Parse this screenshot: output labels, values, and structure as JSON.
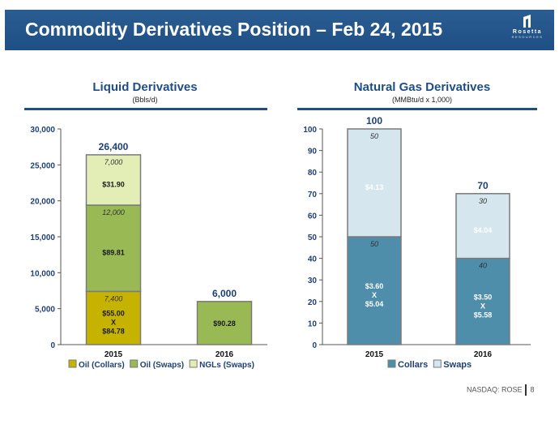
{
  "header": {
    "title": "Commodity Derivatives Position – Feb 24, 2015",
    "logo_name": "Rosetta",
    "logo_sub": "RESOURCES"
  },
  "footer": {
    "ticker": "NASDAQ: ROSE",
    "page": "8"
  },
  "colors": {
    "header_bg": "#235689",
    "oil_collars": "#c6b300",
    "oil_swaps": "#98b954",
    "ngls_swaps": "#e3eeb6",
    "collars": "#4e8eab",
    "swaps": "#d5e6ef"
  },
  "chart_data": [
    {
      "type": "bar",
      "stacked": true,
      "title": "Liquid Derivatives",
      "subtitle": "(Bbls/d)",
      "categories": [
        "2015",
        "2016"
      ],
      "ylim": [
        0,
        30000
      ],
      "yticks": [
        "0",
        "5,000",
        "10,000",
        "15,000",
        "20,000",
        "25,000",
        "30,000"
      ],
      "totals": [
        "26,400",
        "6,000"
      ],
      "series": [
        {
          "name": "Oil (Collars)",
          "values": [
            7400,
            0
          ],
          "volume_labels": [
            "7,400",
            ""
          ],
          "price_labels": [
            [
              "$55.00",
              "X",
              "$84.78"
            ],
            []
          ]
        },
        {
          "name": "Oil (Swaps)",
          "values": [
            12000,
            6000
          ],
          "volume_labels": [
            "12,000",
            ""
          ],
          "price_labels": [
            [
              "$89.81"
            ],
            [
              "$90.28"
            ]
          ]
        },
        {
          "name": "NGLs (Swaps)",
          "values": [
            7000,
            0
          ],
          "volume_labels": [
            "7,000",
            ""
          ],
          "price_labels": [
            [
              "$31.90"
            ],
            []
          ]
        }
      ]
    },
    {
      "type": "bar",
      "stacked": true,
      "title": "Natural Gas Derivatives",
      "subtitle": "(MMBtu/d x 1,000)",
      "categories": [
        "2015",
        "2016"
      ],
      "ylim": [
        0,
        100
      ],
      "yticks": [
        "0",
        "10",
        "20",
        "30",
        "40",
        "50",
        "60",
        "70",
        "80",
        "90",
        "100"
      ],
      "totals": [
        "100",
        "70"
      ],
      "series": [
        {
          "name": "Collars",
          "values": [
            50,
            40
          ],
          "volume_labels": [
            "50",
            "40"
          ],
          "price_labels": [
            [
              "$3.60",
              "X",
              "$5.04"
            ],
            [
              "$3.50",
              "X",
              "$5.58"
            ]
          ]
        },
        {
          "name": "Swaps",
          "values": [
            50,
            30
          ],
          "volume_labels": [
            "50",
            "30"
          ],
          "price_labels": [
            [
              "$4.13"
            ],
            [
              "$4.04"
            ]
          ]
        }
      ]
    }
  ]
}
